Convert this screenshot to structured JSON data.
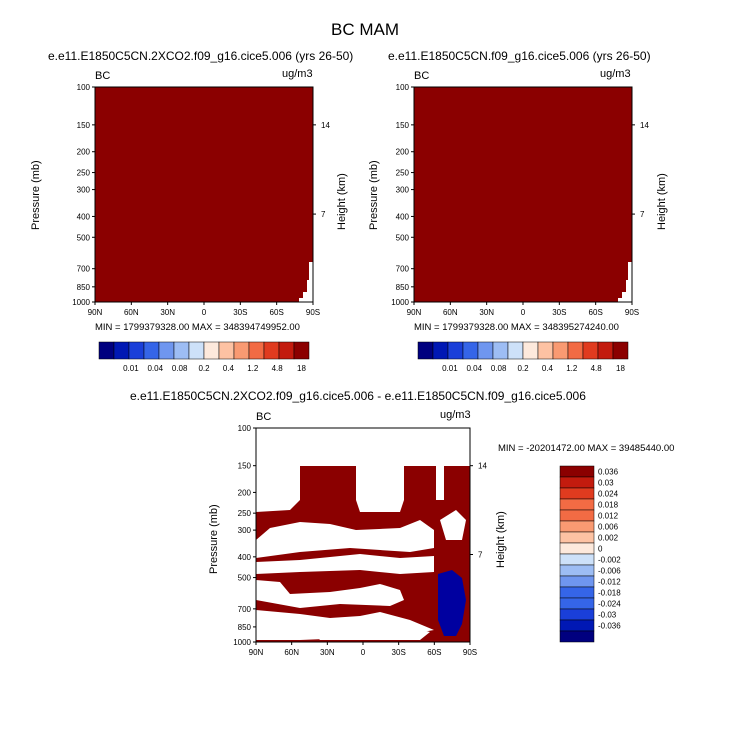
{
  "title": "BC MAM",
  "colors": {
    "fill_red": "#8b0000",
    "fill_blue": "#0000a0",
    "levels": [
      "#00007f",
      "#0018b4",
      "#1a3fd9",
      "#3565e8",
      "#6f96ef",
      "#9dbdf4",
      "#cde1f9",
      "#fde9dc",
      "#fdc2a3",
      "#f99a72",
      "#f26b44",
      "#e03b1f",
      "#c31b0e",
      "#8b0000"
    ]
  },
  "chart_data": [
    {
      "type": "heatmap",
      "title": "e.e11.E1850C5CN.2XCO2.f09_g16.cice5.006 (yrs 26-50)",
      "corner_left": "BC",
      "corner_right": "ug/m3",
      "ylabel": "Pressure (mb)",
      "ylabel_right": "Height (km)",
      "x_ticks": [
        "90N",
        "60N",
        "30N",
        "0",
        "30S",
        "60S",
        "90S"
      ],
      "y_ticks": [
        "100",
        "150",
        "200",
        "250",
        "300",
        "400",
        "500",
        "700",
        "850",
        "1000"
      ],
      "y_right_ticks": [
        "14",
        "7"
      ],
      "stats": "MIN = 1799379328.00  MAX = 348394749952.00",
      "colorbar_labels": [
        "0.01",
        "0.04",
        "0.08",
        "0.2",
        "0.4",
        "1.2",
        "4.8",
        "18"
      ]
    },
    {
      "type": "heatmap",
      "title": "e.e11.E1850C5CN.f09_g16.cice5.006 (yrs 26-50)",
      "corner_left": "BC",
      "corner_right": "ug/m3",
      "ylabel": "Pressure (mb)",
      "ylabel_right": "Height (km)",
      "x_ticks": [
        "90N",
        "60N",
        "30N",
        "0",
        "30S",
        "60S",
        "90S"
      ],
      "y_ticks": [
        "100",
        "150",
        "200",
        "250",
        "300",
        "400",
        "500",
        "700",
        "850",
        "1000"
      ],
      "y_right_ticks": [
        "14",
        "7"
      ],
      "stats": "MIN = 1799379328.00  MAX = 348395274240.00",
      "colorbar_labels": [
        "0.01",
        "0.04",
        "0.08",
        "0.2",
        "0.4",
        "1.2",
        "4.8",
        "18"
      ]
    },
    {
      "type": "heatmap",
      "title": "e.e11.E1850C5CN.2XCO2.f09_g16.cice5.006 - e.e11.E1850C5CN.f09_g16.cice5.006",
      "corner_left": "BC",
      "corner_right": "ug/m3",
      "ylabel": "Pressure (mb)",
      "ylabel_right": "Height (km)",
      "x_ticks": [
        "90N",
        "60N",
        "30N",
        "0",
        "30S",
        "60S",
        "90S"
      ],
      "y_ticks": [
        "100",
        "150",
        "200",
        "250",
        "300",
        "400",
        "500",
        "700",
        "850",
        "1000"
      ],
      "y_right_ticks": [
        "14",
        "7"
      ],
      "stats": "MIN = -20201472.00  MAX = 39485440.00",
      "colorbar_labels": [
        "0.036",
        "0.03",
        "0.024",
        "0.018",
        "0.012",
        "0.006",
        "0.002",
        "0",
        "-0.002",
        "-0.006",
        "-0.012",
        "-0.018",
        "-0.024",
        "-0.03",
        "-0.036"
      ]
    }
  ]
}
